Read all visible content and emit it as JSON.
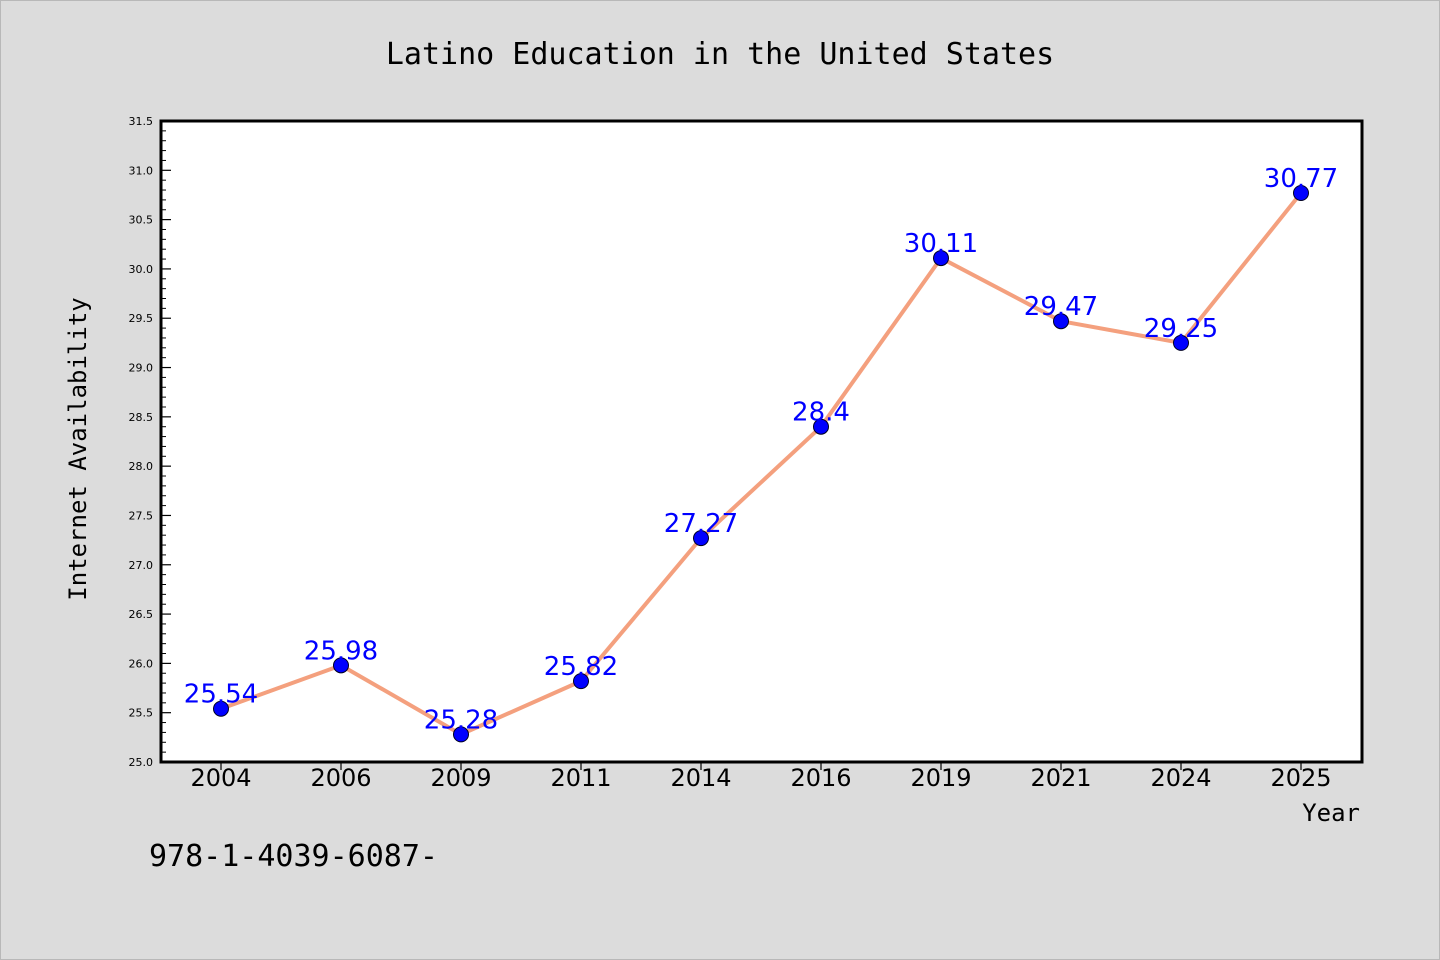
{
  "chart_data": {
    "type": "line",
    "title": "Latino Education in the United States",
    "xlabel": "Year",
    "ylabel": "Internet Availability",
    "categories": [
      "2004",
      "2006",
      "2009",
      "2011",
      "2014",
      "2016",
      "2019",
      "2021",
      "2024",
      "2025"
    ],
    "series": [
      {
        "values": [
          25.54,
          25.98,
          25.28,
          25.82,
          27.27,
          28.4,
          30.11,
          29.47,
          29.25,
          30.77
        ],
        "data_labels": [
          "25.54",
          "25.98",
          "25.28",
          "25.82",
          "27.27",
          "28.4",
          "30.11",
          "29.47",
          "29.25",
          "30.77"
        ],
        "line_color": "#f4a07e",
        "marker_color": "#0000ff"
      }
    ],
    "ylim": [
      25.0,
      31.5
    ],
    "yticks": [
      "25.0",
      "25.5",
      "26.0",
      "26.5",
      "27.0",
      "27.5",
      "28.0",
      "28.5",
      "29.0",
      "29.5",
      "30.0",
      "30.5",
      "31.0",
      "31.5"
    ],
    "grid": false,
    "legend": "none"
  },
  "footer": {
    "text": "978-1-4039-6087-"
  },
  "colors": {
    "background": "#dcdcdc",
    "plot_background": "#ffffff",
    "data_label": "#0000ff"
  }
}
